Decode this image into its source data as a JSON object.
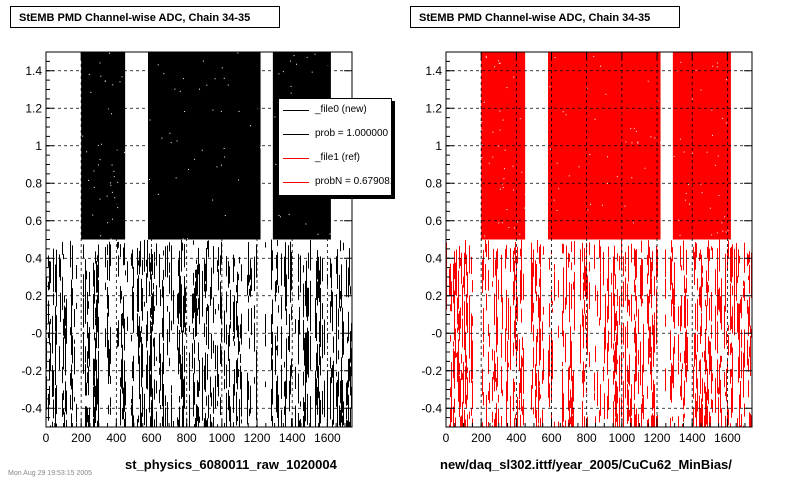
{
  "chart_data": [
    {
      "type": "scatter",
      "title": "StEMB PMD Channel-wise ADC, Chain 34-35",
      "xlabel": "st_physics_6080011_raw_1020004",
      "ylabel": "",
      "xlim": [
        0,
        1740
      ],
      "ylim": [
        -0.5,
        1.5
      ],
      "grid": true,
      "x_ticks": [
        "0",
        "200",
        "400",
        "600",
        "800",
        "1000",
        "1200",
        "1400",
        "1600"
      ],
      "y_ticks": [
        "-0.4",
        "-0.2",
        "-0",
        "0.2",
        "0.4",
        "0.6",
        "0.8",
        "1",
        "1.2",
        "1.4"
      ],
      "marker_color": "#000000",
      "series": [
        {
          "name": "_file0 (new)",
          "color": "#000000"
        }
      ],
      "bands": [
        {
          "range": [
            200,
            450
          ],
          "y": [
            0.5,
            1.5
          ]
        },
        {
          "range": [
            580,
            1220
          ],
          "y": [
            0.5,
            1.5
          ]
        },
        {
          "range": [
            1290,
            1620
          ],
          "y": [
            0.5,
            1.5
          ]
        },
        {
          "range": [
            0,
            1740
          ],
          "y": [
            -0.5,
            0.5
          ]
        }
      ]
    },
    {
      "type": "scatter",
      "title": "StEMB PMD Channel-wise ADC, Chain 34-35",
      "xlabel": "new/daq_sl302.ittf/year_2005/CuCu62_MinBias/",
      "ylabel": "",
      "xlim": [
        0,
        1740
      ],
      "ylim": [
        -0.5,
        1.5
      ],
      "grid": true,
      "x_ticks": [
        "0",
        "200",
        "400",
        "600",
        "800",
        "1000",
        "1200",
        "1400",
        "1600"
      ],
      "y_ticks": [
        "-0.4",
        "-0.2",
        "-0",
        "0.2",
        "0.4",
        "0.6",
        "0.8",
        "1",
        "1.2",
        "1.4"
      ],
      "marker_color": "#ff0000",
      "series": [
        {
          "name": "_file1 (ref)",
          "color": "#ff0000"
        }
      ],
      "bands": [
        {
          "range": [
            200,
            450
          ],
          "y": [
            0.5,
            1.5
          ]
        },
        {
          "range": [
            580,
            1220
          ],
          "y": [
            0.5,
            1.5
          ]
        },
        {
          "range": [
            1290,
            1620
          ],
          "y": [
            0.5,
            1.5
          ]
        },
        {
          "range": [
            0,
            1740
          ],
          "y": [
            -0.5,
            0.5
          ]
        }
      ]
    }
  ],
  "legend": {
    "placement": "top-right of left plot",
    "items": [
      {
        "label": "_file0 (new)",
        "color": "#000000"
      },
      {
        "label": "prob = 1.000000",
        "color": "#000000"
      },
      {
        "label": "_file1 (ref)",
        "color": "#ff0000"
      },
      {
        "label": "probN = 0.679081",
        "color": "#ff0000"
      }
    ]
  },
  "footer": "Mon Aug 29 19:53:15 2005"
}
